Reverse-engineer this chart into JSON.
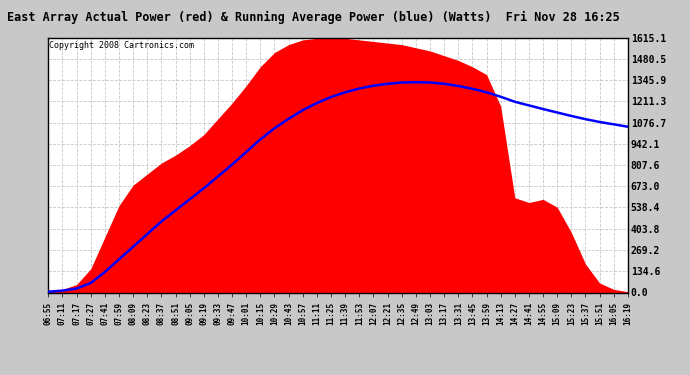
{
  "title": "East Array Actual Power (red) & Running Average Power (blue) (Watts)  Fri Nov 28 16:25",
  "copyright": "Copyright 2008 Cartronics.com",
  "yticks": [
    0.0,
    134.6,
    269.2,
    403.8,
    538.4,
    673.0,
    807.6,
    942.1,
    1076.7,
    1211.3,
    1345.9,
    1480.5,
    1615.1
  ],
  "ymax": 1615.1,
  "ymin": 0.0,
  "fig_bg_color": "#c8c8c8",
  "plot_bg_color": "#ffffff",
  "grid_color": "#c8c8c8",
  "bar_color": "red",
  "line_color": "blue",
  "xtick_labels": [
    "06:55",
    "07:11",
    "07:17",
    "07:27",
    "07:41",
    "07:59",
    "08:09",
    "08:23",
    "08:37",
    "08:51",
    "09:05",
    "09:19",
    "09:33",
    "09:47",
    "10:01",
    "10:15",
    "10:29",
    "10:43",
    "10:57",
    "11:11",
    "11:25",
    "11:39",
    "11:53",
    "12:07",
    "12:21",
    "12:35",
    "12:49",
    "13:03",
    "13:17",
    "13:31",
    "13:45",
    "13:59",
    "14:13",
    "14:27",
    "14:41",
    "14:55",
    "15:09",
    "15:23",
    "15:37",
    "15:51",
    "16:05",
    "16:19"
  ],
  "actual_power": [
    5,
    20,
    50,
    150,
    350,
    550,
    680,
    750,
    820,
    870,
    930,
    1000,
    1100,
    1200,
    1310,
    1430,
    1520,
    1570,
    1600,
    1610,
    1610,
    1610,
    1600,
    1590,
    1580,
    1570,
    1550,
    1530,
    1500,
    1470,
    1430,
    1380,
    1180,
    600,
    570,
    590,
    540,
    380,
    180,
    60,
    20,
    5
  ],
  "running_avg": [
    5,
    12,
    25,
    60,
    130,
    210,
    290,
    370,
    450,
    520,
    590,
    660,
    735,
    810,
    890,
    970,
    1040,
    1100,
    1155,
    1200,
    1238,
    1268,
    1292,
    1310,
    1322,
    1330,
    1332,
    1330,
    1322,
    1308,
    1290,
    1268,
    1240,
    1208,
    1185,
    1162,
    1140,
    1118,
    1098,
    1080,
    1065,
    1050
  ]
}
